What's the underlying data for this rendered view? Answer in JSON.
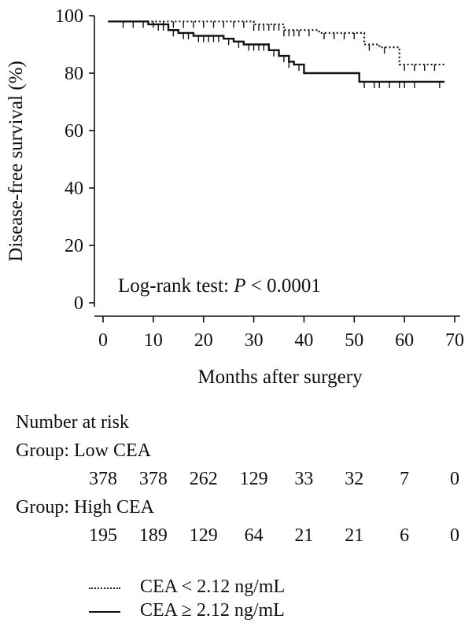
{
  "chart_data": {
    "type": "line",
    "xlabel": "Months after surgery",
    "ylabel": "Disease-free survival (%)",
    "xlim": [
      0,
      70
    ],
    "ylim": [
      0,
      100
    ],
    "xticks": [
      0,
      10,
      20,
      30,
      40,
      50,
      60,
      70
    ],
    "yticks": [
      0,
      20,
      40,
      60,
      80,
      100
    ],
    "annotation_prefix": "Log-rank test: ",
    "annotation_p": "P",
    "annotation_suffix": " < 0.0001",
    "series": [
      {
        "legend_label": "CEA < 2.12 ng/mL",
        "style": "dotted",
        "color": "#111111",
        "steps": [
          [
            1,
            98
          ],
          [
            30,
            97
          ],
          [
            36,
            95
          ],
          [
            43,
            94
          ],
          [
            52,
            90
          ],
          [
            55,
            89
          ],
          [
            59,
            83
          ],
          [
            68,
            83
          ]
        ],
        "censored_x": [
          4,
          6,
          8,
          10,
          12,
          14,
          16,
          18,
          20,
          22,
          24,
          26,
          28,
          30,
          31,
          32,
          33,
          34,
          35,
          36,
          37,
          38,
          39,
          41,
          44,
          46,
          48,
          50,
          53,
          56,
          60,
          62,
          64,
          66
        ]
      },
      {
        "legend_label": "CEA ≥ 2.12 ng/mL",
        "style": "solid",
        "color": "#111111",
        "steps": [
          [
            1,
            98
          ],
          [
            9,
            97
          ],
          [
            13,
            95
          ],
          [
            15,
            94
          ],
          [
            18,
            93
          ],
          [
            24,
            92
          ],
          [
            26,
            91
          ],
          [
            28,
            90
          ],
          [
            33,
            88
          ],
          [
            35,
            86
          ],
          [
            37,
            84
          ],
          [
            38,
            83
          ],
          [
            40,
            80
          ],
          [
            51,
            77
          ],
          [
            68,
            77
          ]
        ],
        "censored_x": [
          11,
          12,
          14,
          16,
          17,
          19,
          20,
          21,
          22,
          23,
          25,
          27,
          29,
          30,
          31,
          32,
          34,
          36,
          37,
          39,
          52,
          54,
          55,
          57,
          59,
          60,
          62,
          67
        ]
      }
    ]
  },
  "risk_table": {
    "heading": "Number at risk",
    "groups": [
      {
        "label": "Group: Low CEA",
        "counts": [
          "378",
          "378",
          "262",
          "129",
          "33",
          "32",
          "7",
          "0"
        ]
      },
      {
        "label": "Group: High CEA",
        "counts": [
          "195",
          "189",
          "129",
          "64",
          "21",
          "21",
          "6",
          "0"
        ]
      }
    ]
  },
  "legend": {
    "items": [
      {
        "label": "CEA < 2.12 ng/mL",
        "style": "dotted"
      },
      {
        "label": "CEA ≥ 2.12 ng/mL",
        "style": "solid"
      }
    ]
  }
}
